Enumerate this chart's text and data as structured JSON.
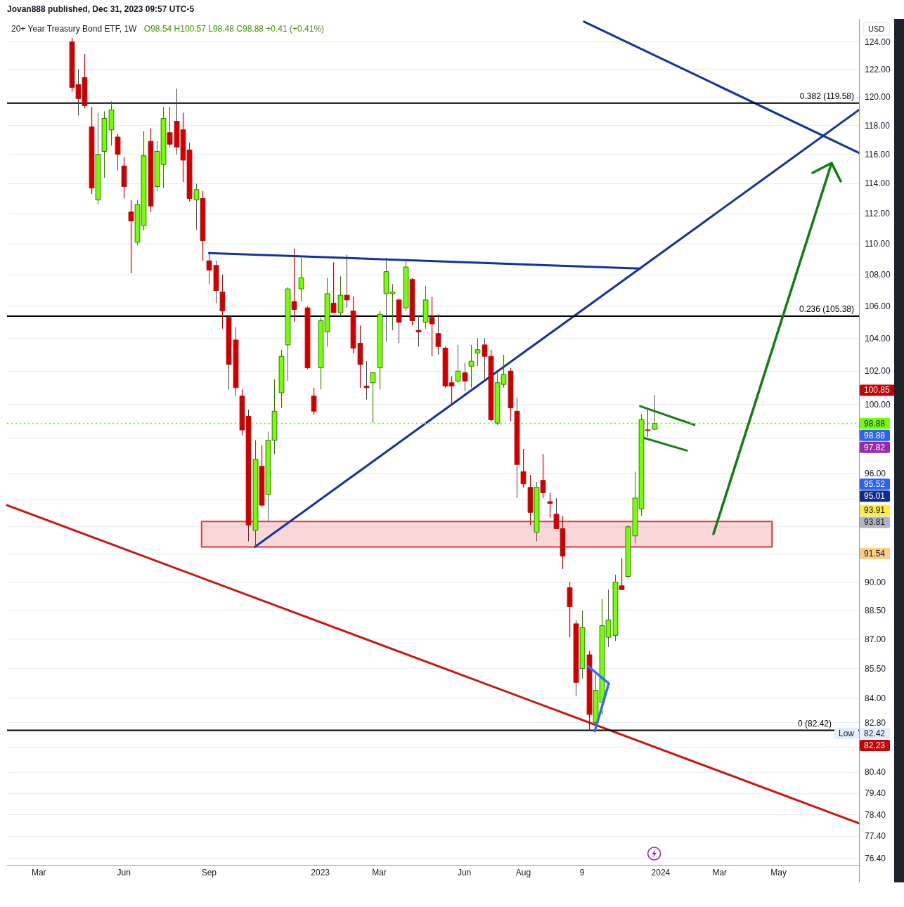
{
  "chart_data": {
    "type": "candlestick",
    "title": "20+ Year Treasury Bond ETF, 1W",
    "subtitle": "O98.54 H100.57 L98.48 C98.88 +0.41 (+0.41%)",
    "x": [
      "2022-04-11",
      "2022-04-18",
      "2022-04-25",
      "2022-05-02",
      "2022-05-09",
      "2022-05-16",
      "2022-05-23",
      "2022-05-30",
      "2022-06-06",
      "2022-06-13",
      "2022-06-20",
      "2022-06-27",
      "2022-07-04",
      "2022-07-11",
      "2022-07-18",
      "2022-07-25",
      "2022-08-01",
      "2022-08-08",
      "2022-08-15",
      "2022-08-22",
      "2022-08-29",
      "2022-09-05",
      "2022-09-12",
      "2022-09-19",
      "2022-09-26",
      "2022-10-03",
      "2022-10-10",
      "2022-10-17",
      "2022-10-24",
      "2022-10-31",
      "2022-11-07",
      "2022-11-14",
      "2022-11-21",
      "2022-11-28",
      "2022-12-05",
      "2022-12-12",
      "2022-12-19",
      "2022-12-26",
      "2023-01-02",
      "2023-01-09",
      "2023-01-16",
      "2023-01-23",
      "2023-01-30",
      "2023-02-06",
      "2023-02-13",
      "2023-02-20",
      "2023-02-27",
      "2023-03-06",
      "2023-03-13",
      "2023-03-20",
      "2023-03-27",
      "2023-04-03",
      "2023-04-10",
      "2023-04-17",
      "2023-04-24",
      "2023-05-01",
      "2023-05-08",
      "2023-05-15",
      "2023-05-22",
      "2023-05-29",
      "2023-06-05",
      "2023-06-12",
      "2023-06-19",
      "2023-06-26",
      "2023-07-03",
      "2023-07-10",
      "2023-07-17",
      "2023-07-24",
      "2023-07-31",
      "2023-08-07",
      "2023-08-14",
      "2023-08-21",
      "2023-08-28",
      "2023-09-04",
      "2023-09-11",
      "2023-09-18",
      "2023-09-25",
      "2023-10-02",
      "2023-10-09",
      "2023-10-16",
      "2023-10-23",
      "2023-10-30",
      "2023-11-06",
      "2023-11-13",
      "2023-11-20",
      "2023-11-27",
      "2023-12-04",
      "2023-12-11",
      "2023-12-18",
      "2023-12-25"
    ],
    "ohlc": [
      [
        124.0,
        124.3,
        120.4,
        120.7
      ],
      [
        120.9,
        122.0,
        118.7,
        119.9
      ],
      [
        121.4,
        123.1,
        119.2,
        119.4
      ],
      [
        117.9,
        119.3,
        113.3,
        113.7
      ],
      [
        112.9,
        118.9,
        112.6,
        116.0
      ],
      [
        116.2,
        119.0,
        114.4,
        118.5
      ],
      [
        117.7,
        119.7,
        116.6,
        119.1
      ],
      [
        117.2,
        117.4,
        114.9,
        116.0
      ],
      [
        115.2,
        115.8,
        113.0,
        113.8
      ],
      [
        112.1,
        112.9,
        108.1,
        111.5
      ],
      [
        110.1,
        112.9,
        109.9,
        112.6
      ],
      [
        111.2,
        117.6,
        110.9,
        115.9
      ],
      [
        116.9,
        117.8,
        112.1,
        112.5
      ],
      [
        113.8,
        116.9,
        113.5,
        116.2
      ],
      [
        115.3,
        119.3,
        113.7,
        118.5
      ],
      [
        117.5,
        119.3,
        116.5,
        116.7
      ],
      [
        118.3,
        120.6,
        116.0,
        116.5
      ],
      [
        117.7,
        118.9,
        114.1,
        115.6
      ],
      [
        116.3,
        116.8,
        112.8,
        113.0
      ],
      [
        112.9,
        114.0,
        110.9,
        113.6
      ],
      [
        113.0,
        113.5,
        108.9,
        110.2
      ],
      [
        108.9,
        109.5,
        107.4,
        108.3
      ],
      [
        108.6,
        108.9,
        106.2,
        107.0
      ],
      [
        106.9,
        108.0,
        104.6,
        105.7
      ],
      [
        105.3,
        105.4,
        100.9,
        102.4
      ],
      [
        103.9,
        104.7,
        100.5,
        101.0
      ],
      [
        100.5,
        100.9,
        98.2,
        98.5
      ],
      [
        99.3,
        99.7,
        92.2,
        93.1
      ],
      [
        92.8,
        97.9,
        91.9,
        96.8
      ],
      [
        96.4,
        97.6,
        94.1,
        94.2
      ],
      [
        94.8,
        98.4,
        93.3,
        97.9
      ],
      [
        97.9,
        101.5,
        97.1,
        99.6
      ],
      [
        100.7,
        103.3,
        99.8,
        102.9
      ],
      [
        103.6,
        107.2,
        101.4,
        107.1
      ],
      [
        106.3,
        109.7,
        105.0,
        105.8
      ],
      [
        107.1,
        109.1,
        106.3,
        107.8
      ],
      [
        105.9,
        106.0,
        102.1,
        102.2
      ],
      [
        100.5,
        101.0,
        99.4,
        99.6
      ],
      [
        102.2,
        105.3,
        100.9,
        105.1
      ],
      [
        104.4,
        107.8,
        103.5,
        106.8
      ],
      [
        106.2,
        108.8,
        105.6,
        105.6
      ],
      [
        105.6,
        107.9,
        105.4,
        106.7
      ],
      [
        106.7,
        109.3,
        105.9,
        106.4
      ],
      [
        105.7,
        106.6,
        103.1,
        103.4
      ],
      [
        103.7,
        104.8,
        101.0,
        102.4
      ],
      [
        101.1,
        102.6,
        100.3,
        101.0
      ],
      [
        101.3,
        101.9,
        98.9,
        101.9
      ],
      [
        102.2,
        105.7,
        100.9,
        105.5
      ],
      [
        106.8,
        109.1,
        103.8,
        108.2
      ],
      [
        106.8,
        107.4,
        104.5,
        106.9
      ],
      [
        106.4,
        106.5,
        103.7,
        105.0
      ],
      [
        105.9,
        108.9,
        105.7,
        108.5
      ],
      [
        107.7,
        107.8,
        104.8,
        105.1
      ],
      [
        104.5,
        105.4,
        103.5,
        104.4
      ],
      [
        105.0,
        107.3,
        104.6,
        106.4
      ],
      [
        105.3,
        106.6,
        102.9,
        104.9
      ],
      [
        104.3,
        105.5,
        103.0,
        103.5
      ],
      [
        103.4,
        103.5,
        101.0,
        101.1
      ],
      [
        101.3,
        101.7,
        100.0,
        101.1
      ],
      [
        101.4,
        103.6,
        101.3,
        102.0
      ],
      [
        101.9,
        102.5,
        100.8,
        101.4
      ],
      [
        102.3,
        103.6,
        101.0,
        102.6
      ],
      [
        103.1,
        104.0,
        102.3,
        103.3
      ],
      [
        103.6,
        104.0,
        101.5,
        102.9
      ],
      [
        102.9,
        103.3,
        99.0,
        99.1
      ],
      [
        98.9,
        101.9,
        98.8,
        101.3
      ],
      [
        101.2,
        103.0,
        101.0,
        101.8
      ],
      [
        102.0,
        102.2,
        99.0,
        99.8
      ],
      [
        99.6,
        100.4,
        94.6,
        96.5
      ],
      [
        96.1,
        97.4,
        95.2,
        95.4
      ],
      [
        95.2,
        95.9,
        93.1,
        93.8
      ],
      [
        92.7,
        95.5,
        92.2,
        95.2
      ],
      [
        95.6,
        97.1,
        94.6,
        94.9
      ],
      [
        94.4,
        94.9,
        93.5,
        94.3
      ],
      [
        93.7,
        94.6,
        92.9,
        92.9
      ],
      [
        92.9,
        93.6,
        90.7,
        91.4
      ],
      [
        89.7,
        90.0,
        87.1,
        88.7
      ],
      [
        87.8,
        88.0,
        84.1,
        84.8
      ],
      [
        85.5,
        88.5,
        85.0,
        87.6
      ],
      [
        86.2,
        86.4,
        82.42,
        83.2
      ],
      [
        82.8,
        85.3,
        82.7,
        84.4
      ],
      [
        83.8,
        89.1,
        83.2,
        87.7
      ],
      [
        87.1,
        89.6,
        86.6,
        88.0
      ],
      [
        87.2,
        90.4,
        86.9,
        90.0
      ],
      [
        89.8,
        91.3,
        89.6,
        89.6
      ],
      [
        90.3,
        93.1,
        90.2,
        93.0
      ],
      [
        92.5,
        96.1,
        92.1,
        94.6
      ],
      [
        94.0,
        99.4,
        93.6,
        99.1
      ],
      [
        98.5,
        99.7,
        98.1,
        98.47
      ],
      [
        98.54,
        100.57,
        98.48,
        98.88
      ]
    ],
    "colors": [
      "#cc0000",
      "#cc0000",
      "#cc0000",
      "#cc0000",
      "#76ff03",
      "#76ff03",
      "#76ff03",
      "#cc0000",
      "#cc0000",
      "#cc0000",
      "#76ff03",
      "#76ff03",
      "#cc0000",
      "#76ff03",
      "#76ff03",
      "#cc0000",
      "#cc0000",
      "#cc0000",
      "#cc0000",
      "#76ff03",
      "#cc0000",
      "#cc0000",
      "#cc0000",
      "#cc0000",
      "#cc0000",
      "#cc0000",
      "#cc0000",
      "#cc0000",
      "#76ff03",
      "#cc0000",
      "#76ff03",
      "#76ff03",
      "#76ff03",
      "#76ff03",
      "#cc0000",
      "#76ff03",
      "#cc0000",
      "#cc0000",
      "#76ff03",
      "#76ff03",
      "#cc0000",
      "#76ff03",
      "#cc0000",
      "#cc0000",
      "#cc0000",
      "#cc0000",
      "#76ff03",
      "#76ff03",
      "#76ff03",
      "#76ff03",
      "#cc0000",
      "#76ff03",
      "#cc0000",
      "#cc0000",
      "#76ff03",
      "#cc0000",
      "#cc0000",
      "#cc0000",
      "#cc0000",
      "#76ff03",
      "#cc0000",
      "#76ff03",
      "#76ff03",
      "#cc0000",
      "#cc0000",
      "#76ff03",
      "#76ff03",
      "#cc0000",
      "#cc0000",
      "#cc0000",
      "#cc0000",
      "#76ff03",
      "#cc0000",
      "#cc0000",
      "#cc0000",
      "#cc0000",
      "#cc0000",
      "#cc0000",
      "#76ff03",
      "#cc0000",
      "#76ff03",
      "#76ff03",
      "#76ff03",
      "#76ff03",
      "#cc0000",
      "#76ff03",
      "#76ff03",
      "#76ff03",
      "#cc0000",
      "#76ff03"
    ],
    "series": [
      {
        "type": "area",
        "x": [
          "2022-08-28",
          "2024-04-29",
          "2024-04-29",
          "2022-08-28",
          "2022-08-28"
        ],
        "values": [
          93.3,
          93.3,
          91.9,
          91.9,
          93.3
        ],
        "color": "#e0393e"
      },
      {
        "type": "line",
        "x": [
          "2022-02-01",
          "2024-07-31"
        ],
        "values": [
          94.2,
          78.0
        ],
        "color": "#cc1414"
      },
      {
        "type": "line",
        "x": [
          "2023-10-11",
          "2024-07-31"
        ],
        "values": [
          125.5,
          116.1
        ],
        "color": "#13329a"
      },
      {
        "type": "line",
        "x": [
          "2022-10-24",
          "2024-07-31"
        ],
        "values": [
          91.9,
          119.1
        ],
        "color": "#13329a"
      },
      {
        "type": "line",
        "x": [
          "2022-09-05",
          "2023-12-10"
        ],
        "values": [
          109.4,
          108.4
        ],
        "color": "#13329a"
      },
      {
        "type": "line",
        "x": [
          "2023-12-10",
          "2024-02-06"
        ],
        "values": [
          99.9,
          98.8
        ],
        "color": "#1c7a1c"
      },
      {
        "type": "line",
        "x": [
          "2023-12-10",
          "2024-01-29"
        ],
        "values": [
          98.1,
          97.3
        ],
        "color": "#1c7a1c"
      }
    ],
    "xlim": [
      "2022-02-01",
      "2024-07-31"
    ],
    "xticks": [
      {
        "value": "2022-03-07",
        "label": "Mar"
      },
      {
        "value": "2022-06-06",
        "label": "Jun"
      },
      {
        "value": "2022-09-05",
        "label": "Sep"
      },
      {
        "value": "2023-01-02",
        "label": "2023"
      },
      {
        "value": "2023-03-06",
        "label": "Mar"
      },
      {
        "value": "2023-06-05",
        "label": "Jun"
      },
      {
        "value": "2023-08-07",
        "label": "Aug"
      },
      {
        "value": "2023-10-09",
        "label": "9"
      },
      {
        "value": "2024-01-01",
        "label": "2024"
      },
      {
        "value": "2024-03-04",
        "label": "Mar"
      },
      {
        "value": "2024-05-06",
        "label": "May"
      }
    ],
    "ylim": [
      76.1,
      125.7
    ],
    "yticks": [
      {
        "value": 124,
        "label": "124.00"
      },
      {
        "value": 122,
        "label": "122.00"
      },
      {
        "value": 120,
        "label": "120.00"
      },
      {
        "value": 118,
        "label": "118.00"
      },
      {
        "value": 116,
        "label": "116.00"
      },
      {
        "value": 114,
        "label": "114.00"
      },
      {
        "value": 112,
        "label": "112.00"
      },
      {
        "value": 110,
        "label": "110.00"
      },
      {
        "value": 108,
        "label": "108.00"
      },
      {
        "value": 106,
        "label": "106.00"
      },
      {
        "value": 104,
        "label": "104.00"
      },
      {
        "value": 102,
        "label": "102.00"
      },
      {
        "value": 100,
        "label": "100.00"
      },
      {
        "value": 98,
        "label": null
      },
      {
        "value": 96,
        "label": "96.00"
      },
      {
        "value": 94.5,
        "label": null
      },
      {
        "value": 93,
        "label": null
      },
      {
        "value": 91.5,
        "label": null
      },
      {
        "value": 90,
        "label": "90.00"
      },
      {
        "value": 88.5,
        "label": "88.50"
      },
      {
        "value": 87,
        "label": "87.00"
      },
      {
        "value": 85.5,
        "label": "85.50"
      },
      {
        "value": 84,
        "label": "84.00"
      },
      {
        "value": 82.8,
        "label": "82.80"
      },
      {
        "value": 81.6,
        "label": null
      },
      {
        "value": 80.4,
        "label": "80.40"
      },
      {
        "value": 79.4,
        "label": "79.40"
      },
      {
        "value": 78.4,
        "label": "78.40"
      },
      {
        "value": 77.4,
        "label": "77.40"
      },
      {
        "value": 76.4,
        "label": "76.40"
      }
    ],
    "log": true,
    "grid": "y",
    "ref_lines": [
      {
        "axis": "y",
        "value": 119.58,
        "label": "0.382 (119.58)",
        "color": "#000000"
      },
      {
        "axis": "y",
        "value": 105.38,
        "label": "0.236 (105.38)",
        "color": "#000000"
      },
      {
        "axis": "y",
        "value": 82.42,
        "label": "0 (82.42)",
        "color": "#000000"
      },
      {
        "axis": "y",
        "value": 98.88,
        "color": "#76ff03",
        "line_style": "dotted"
      }
    ],
    "annotations": [
      "Jovan888 published, Dec 31, 2023 09:57 UTC-5",
      "USD",
      "100.85",
      "98.88",
      "98.88",
      "97.82",
      "95.52",
      "95.01",
      "93.91",
      "93.81",
      "91.54",
      "Low",
      "82.42",
      "82.23"
    ]
  }
}
